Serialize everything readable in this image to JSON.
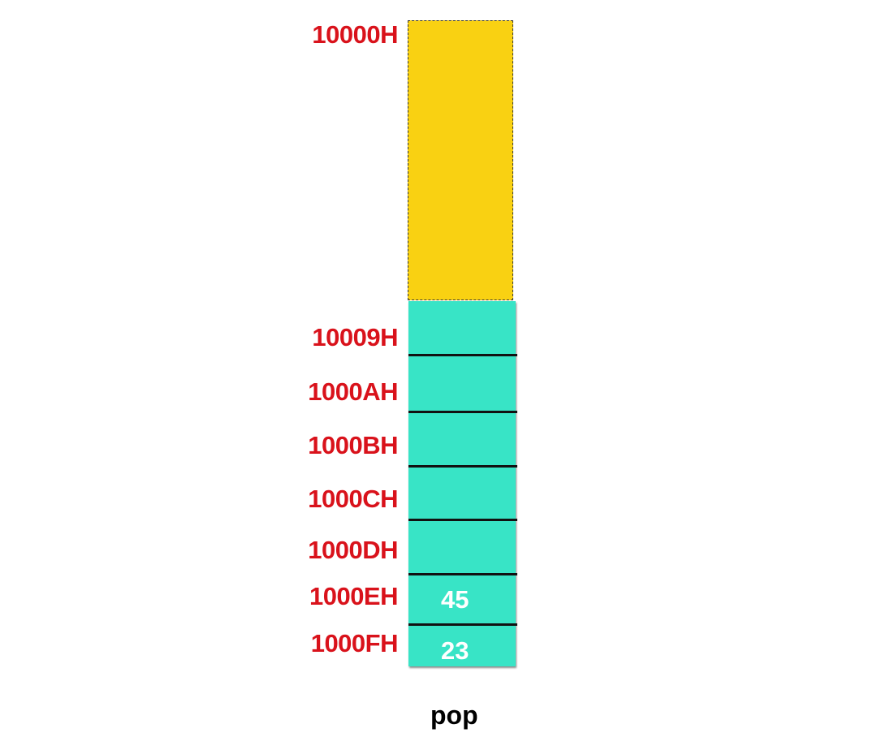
{
  "addresses": {
    "top": "10000H",
    "a9": "10009H",
    "aA": "1000AH",
    "aB": "1000BH",
    "aC": "1000CH",
    "aD": "1000DH",
    "aE": "1000EH",
    "aF": "1000FH"
  },
  "cells": {
    "e": "45",
    "f": "23"
  },
  "caption": "pop",
  "colors": {
    "free_region": "#f9d112",
    "stack_cells": "#38e4c6",
    "address_text": "#d9121b"
  }
}
